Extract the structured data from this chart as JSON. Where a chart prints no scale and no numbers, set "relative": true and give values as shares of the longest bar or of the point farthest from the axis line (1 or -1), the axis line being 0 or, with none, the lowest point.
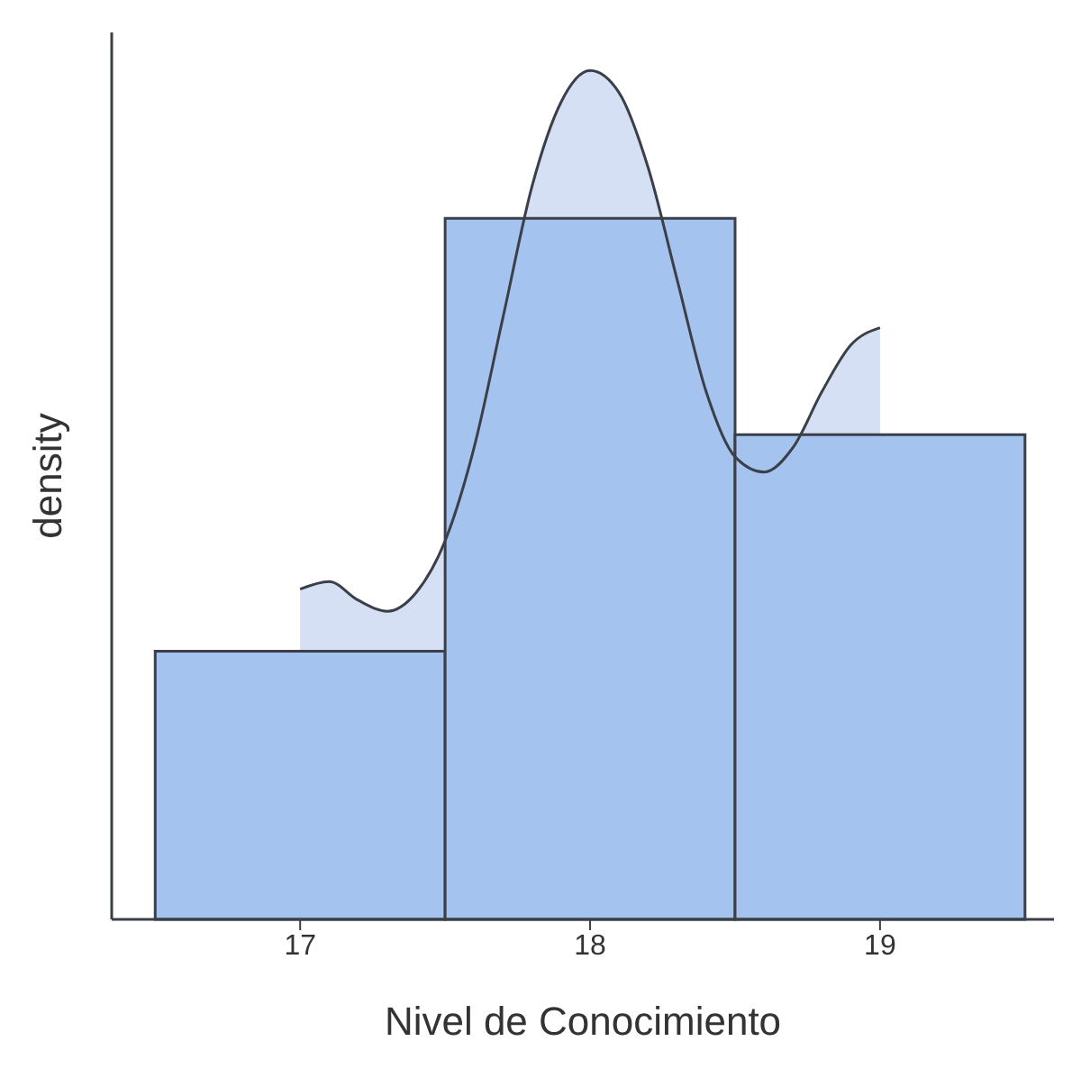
{
  "chart_data": {
    "type": "histogram",
    "xlabel": "Nivel de Conocimiento",
    "ylabel": "density",
    "relative": true,
    "bins": [
      16.5,
      17.5,
      18.5,
      19.5
    ],
    "xlim": [
      16.35,
      19.6
    ],
    "xticks": [
      17,
      18,
      19
    ],
    "series": [
      {
        "color": "#a4c3ef",
        "values": [
          0.316,
          0.826,
          0.571
        ]
      },
      {
        "type": "area",
        "color": "#d6e0f5",
        "x": [
          17,
          17.1,
          17.2,
          17.3,
          17.4,
          17.5,
          17.6,
          17.7,
          17.8,
          17.9,
          18,
          18.1,
          18.2,
          18.3,
          18.4,
          18.5,
          18.6,
          18.7,
          18.8,
          18.9,
          19
        ],
        "values": [
          0.389,
          0.398,
          0.376,
          0.363,
          0.385,
          0.446,
          0.556,
          0.71,
          0.864,
          0.963,
          1,
          0.974,
          0.886,
          0.754,
          0.622,
          0.545,
          0.527,
          0.556,
          0.622,
          0.677,
          0.697
        ]
      }
    ]
  }
}
